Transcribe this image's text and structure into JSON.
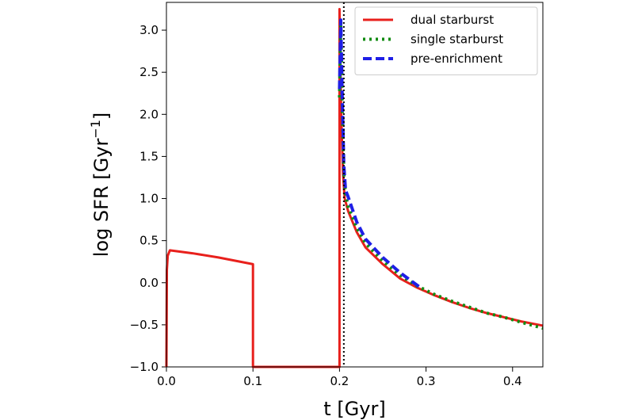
{
  "chart_data": {
    "type": "line",
    "xlabel": "t [Gyr]",
    "ylabel_main": "log SFR [Gyr",
    "ylabel_sup": "−1",
    "ylabel_close": "]",
    "xlim": [
      0.0,
      0.435
    ],
    "ylim": [
      -1.0,
      3.33
    ],
    "x_ticks": [
      0.0,
      0.1,
      0.2,
      0.3,
      0.4
    ],
    "x_tick_labels": [
      "0.0",
      "0.1",
      "0.2",
      "0.3",
      "0.4"
    ],
    "y_ticks": [
      -1.0,
      -0.5,
      0.0,
      0.5,
      1.0,
      1.5,
      2.0,
      2.5,
      3.0
    ],
    "y_tick_labels": [
      "−1.0",
      "−0.5",
      "0.0",
      "0.5",
      "1.0",
      "1.5",
      "2.0",
      "2.5",
      "3.0"
    ],
    "grid": false,
    "legend_position": "top-right",
    "vline": {
      "x": 0.205,
      "color": "#000000",
      "style": "dotted"
    },
    "series": [
      {
        "name": "dual starburst",
        "color": "#e8201c",
        "style": "solid",
        "points": [
          [
            0.0,
            -1.0
          ],
          [
            0.0005,
            0.15
          ],
          [
            0.0015,
            0.32
          ],
          [
            0.004,
            0.385
          ],
          [
            0.03,
            0.35
          ],
          [
            0.06,
            0.3
          ],
          [
            0.1,
            0.22
          ],
          [
            0.1,
            -1.0
          ],
          [
            0.2,
            -1.0
          ],
          [
            0.2,
            3.25
          ],
          [
            0.202,
            2.0
          ],
          [
            0.204,
            1.3
          ],
          [
            0.206,
            1.0
          ],
          [
            0.21,
            0.85
          ],
          [
            0.22,
            0.6
          ],
          [
            0.23,
            0.42
          ],
          [
            0.25,
            0.22
          ],
          [
            0.27,
            0.05
          ],
          [
            0.29,
            -0.06
          ],
          [
            0.31,
            -0.15
          ],
          [
            0.33,
            -0.23
          ],
          [
            0.35,
            -0.3
          ],
          [
            0.37,
            -0.36
          ],
          [
            0.39,
            -0.41
          ],
          [
            0.41,
            -0.46
          ],
          [
            0.435,
            -0.51
          ]
        ]
      },
      {
        "name": "single starburst",
        "color": "#128c12",
        "style": "dotted",
        "points": [
          [
            0.2,
            2.2
          ],
          [
            0.2015,
            3.1
          ],
          [
            0.203,
            2.2
          ],
          [
            0.205,
            1.3
          ],
          [
            0.207,
            1.05
          ],
          [
            0.21,
            0.9
          ],
          [
            0.22,
            0.65
          ],
          [
            0.23,
            0.47
          ],
          [
            0.25,
            0.26
          ],
          [
            0.27,
            0.09
          ],
          [
            0.29,
            -0.04
          ],
          [
            0.31,
            -0.14
          ],
          [
            0.33,
            -0.22
          ],
          [
            0.35,
            -0.29
          ],
          [
            0.37,
            -0.36
          ],
          [
            0.39,
            -0.41
          ],
          [
            0.41,
            -0.47
          ],
          [
            0.435,
            -0.54
          ]
        ]
      },
      {
        "name": "pre-enrichment",
        "color": "#1f1fe6",
        "style": "dashed",
        "points": [
          [
            0.2,
            2.3
          ],
          [
            0.2015,
            3.12
          ],
          [
            0.203,
            2.3
          ],
          [
            0.205,
            1.4
          ],
          [
            0.207,
            1.1
          ],
          [
            0.21,
            1.02
          ],
          [
            0.22,
            0.72
          ],
          [
            0.23,
            0.52
          ],
          [
            0.25,
            0.3
          ],
          [
            0.27,
            0.12
          ],
          [
            0.295,
            -0.07
          ]
        ]
      }
    ]
  }
}
